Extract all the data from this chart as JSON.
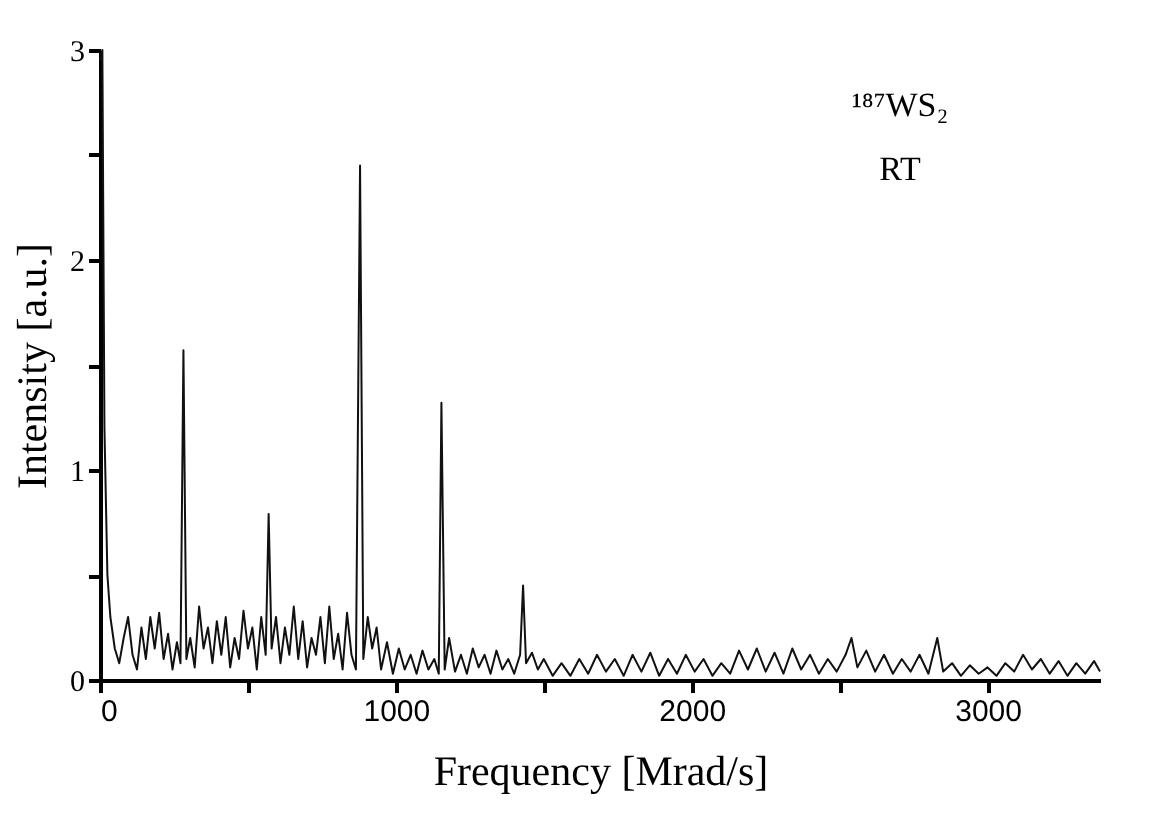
{
  "chart_data": {
    "type": "line",
    "xlabel": "Frequency [Mrad/s]",
    "ylabel": "Intensity [a.u.]",
    "annotations": [
      "¹⁸⁷WS₂",
      "RT"
    ],
    "x": [
      0,
      8,
      15,
      25,
      35,
      50,
      65,
      80,
      95,
      110,
      125,
      140,
      155,
      170,
      185,
      200,
      215,
      230,
      245,
      260,
      272,
      282,
      292,
      305,
      320,
      335,
      350,
      365,
      380,
      395,
      410,
      425,
      440,
      455,
      470,
      485,
      500,
      515,
      530,
      545,
      560,
      570,
      580,
      595,
      610,
      625,
      640,
      655,
      670,
      685,
      700,
      715,
      730,
      745,
      760,
      775,
      790,
      805,
      820,
      835,
      850,
      865,
      879,
      890,
      905,
      920,
      935,
      950,
      970,
      990,
      1010,
      1030,
      1050,
      1070,
      1090,
      1110,
      1130,
      1145,
      1154,
      1165,
      1180,
      1200,
      1220,
      1240,
      1260,
      1280,
      1300,
      1320,
      1340,
      1360,
      1380,
      1400,
      1420,
      1430,
      1440,
      1460,
      1480,
      1500,
      1530,
      1560,
      1590,
      1620,
      1650,
      1680,
      1710,
      1740,
      1770,
      1800,
      1830,
      1860,
      1890,
      1920,
      1950,
      1980,
      2010,
      2040,
      2070,
      2100,
      2130,
      2160,
      2190,
      2220,
      2250,
      2280,
      2310,
      2340,
      2370,
      2400,
      2430,
      2460,
      2490,
      2520,
      2540,
      2560,
      2590,
      2620,
      2650,
      2680,
      2710,
      2740,
      2770,
      2800,
      2830,
      2850,
      2880,
      2910,
      2940,
      2970,
      3000,
      3030,
      3060,
      3090,
      3120,
      3150,
      3180,
      3210,
      3240,
      3270,
      3300,
      3330,
      3360,
      3380
    ],
    "series": [
      {
        "color": "#111111",
        "values": [
          2.95,
          3.0,
          1.2,
          0.5,
          0.3,
          0.15,
          0.08,
          0.2,
          0.3,
          0.12,
          0.05,
          0.25,
          0.1,
          0.3,
          0.15,
          0.32,
          0.1,
          0.22,
          0.05,
          0.18,
          0.08,
          1.57,
          0.1,
          0.2,
          0.06,
          0.35,
          0.15,
          0.25,
          0.08,
          0.28,
          0.12,
          0.3,
          0.06,
          0.2,
          0.1,
          0.33,
          0.15,
          0.25,
          0.05,
          0.3,
          0.12,
          0.79,
          0.15,
          0.3,
          0.08,
          0.25,
          0.12,
          0.35,
          0.1,
          0.28,
          0.06,
          0.2,
          0.12,
          0.3,
          0.08,
          0.35,
          0.1,
          0.22,
          0.05,
          0.32,
          0.12,
          0.05,
          2.45,
          0.1,
          0.3,
          0.15,
          0.25,
          0.05,
          0.18,
          0.03,
          0.15,
          0.05,
          0.12,
          0.03,
          0.14,
          0.05,
          0.1,
          0.03,
          1.32,
          0.05,
          0.2,
          0.04,
          0.12,
          0.03,
          0.15,
          0.06,
          0.12,
          0.03,
          0.14,
          0.05,
          0.1,
          0.03,
          0.12,
          0.45,
          0.08,
          0.13,
          0.05,
          0.1,
          0.02,
          0.08,
          0.02,
          0.1,
          0.03,
          0.12,
          0.04,
          0.1,
          0.02,
          0.12,
          0.04,
          0.13,
          0.02,
          0.1,
          0.03,
          0.12,
          0.04,
          0.1,
          0.02,
          0.08,
          0.03,
          0.14,
          0.05,
          0.15,
          0.04,
          0.13,
          0.03,
          0.15,
          0.05,
          0.12,
          0.03,
          0.1,
          0.04,
          0.12,
          0.2,
          0.06,
          0.14,
          0.04,
          0.12,
          0.03,
          0.1,
          0.04,
          0.12,
          0.03,
          0.2,
          0.04,
          0.08,
          0.02,
          0.07,
          0.03,
          0.06,
          0.02,
          0.08,
          0.04,
          0.12,
          0.05,
          0.1,
          0.03,
          0.09,
          0.02,
          0.08,
          0.03,
          0.09,
          0.04
        ]
      }
    ],
    "xlim": [
      0,
      3380
    ],
    "ylim": [
      0,
      3
    ],
    "xticks": [
      0,
      {
        "value": 500,
        "label": null
      },
      1000,
      {
        "value": 1500,
        "label": null
      },
      2000,
      {
        "value": 2500,
        "label": null
      },
      3000
    ],
    "yticks": [
      0,
      {
        "value": 0.5,
        "label": null
      },
      1,
      {
        "value": 1.5,
        "label": null
      },
      2,
      {
        "value": 2.5,
        "label": null
      },
      3
    ],
    "grid": false,
    "line_style": "solid",
    "marker": "none"
  }
}
